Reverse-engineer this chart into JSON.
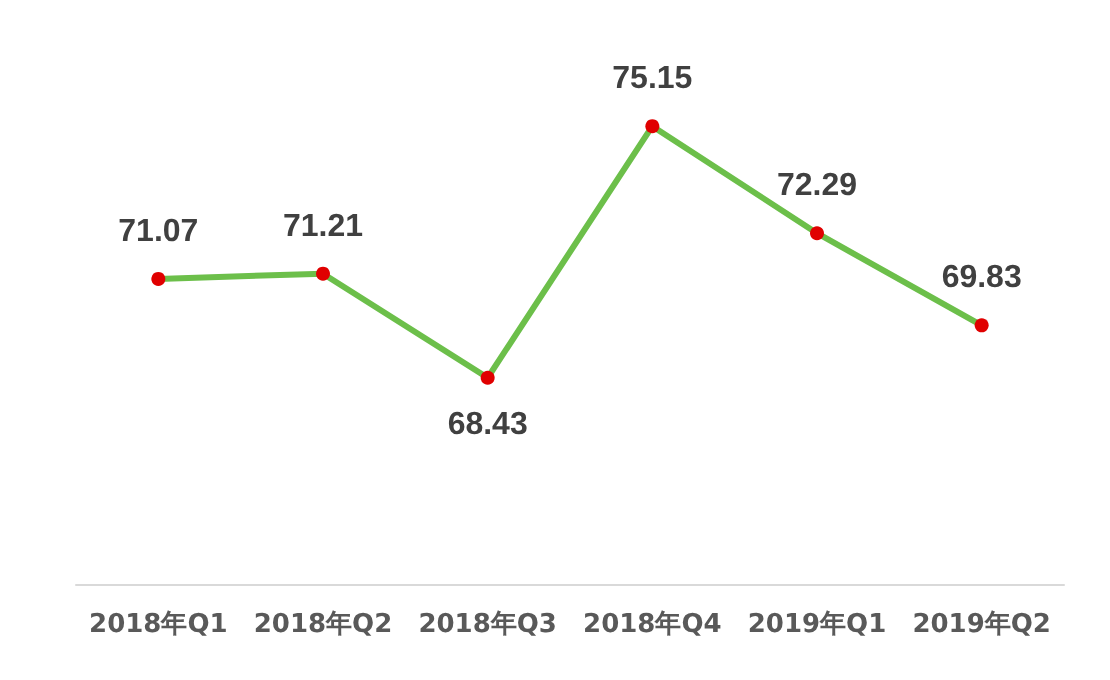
{
  "chart_data": {
    "type": "line",
    "categories": [
      "2018年Q1",
      "2018年Q2",
      "2018年Q3",
      "2018年Q4",
      "2019年Q1",
      "2019年Q2"
    ],
    "series": [
      {
        "color": "#6cbf4a",
        "colors": [
          "#e00000",
          "#e00000",
          "#e00000",
          "#e00000",
          "#e00000",
          "#e00000"
        ],
        "values": [
          71.07,
          71.21,
          68.43,
          75.15,
          72.29,
          69.83
        ]
      }
    ],
    "data_labels": true,
    "marker": "circle",
    "line_style": "solid",
    "grid": false,
    "tick_labels": "x"
  }
}
